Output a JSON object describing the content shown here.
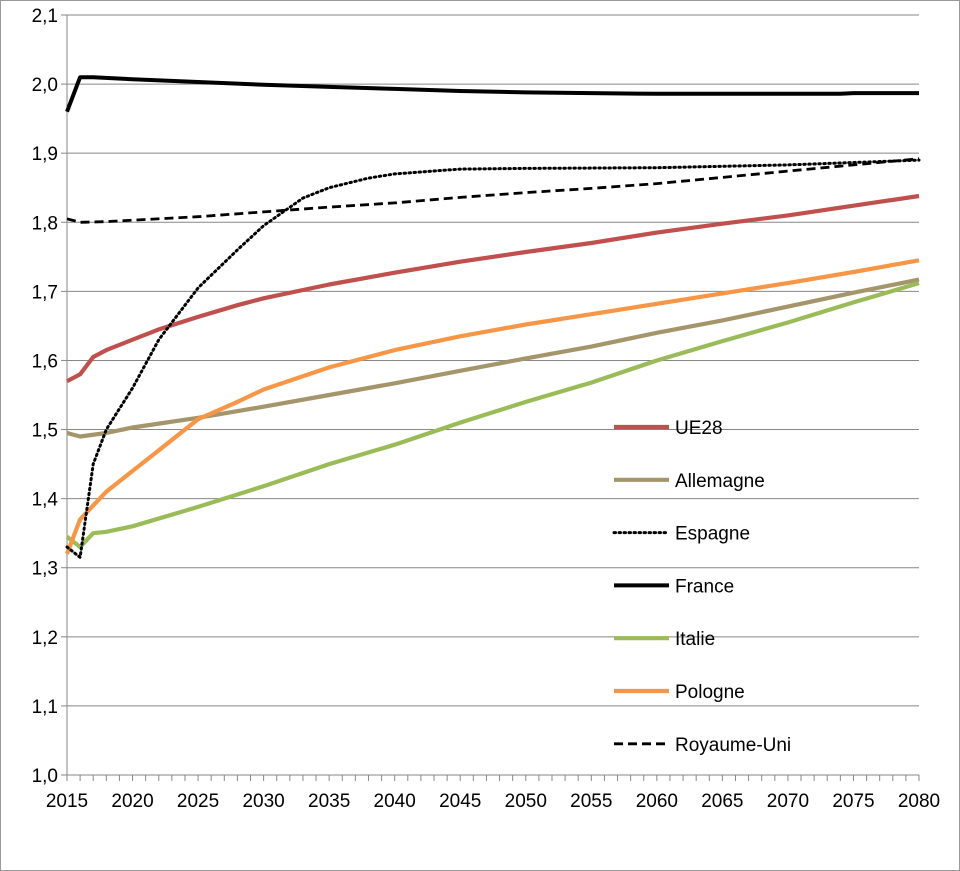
{
  "chart_data": {
    "type": "line",
    "title": "",
    "xlabel": "",
    "ylabel": "",
    "xlim": [
      2015,
      2080
    ],
    "ylim": [
      1.0,
      2.1
    ],
    "grid": "horizontal",
    "legend_position": "right-middle",
    "x_ticks": [
      "2015",
      "2020",
      "2025",
      "2030",
      "2035",
      "2040",
      "2045",
      "2050",
      "2055",
      "2060",
      "2065",
      "2070",
      "2075",
      "2080"
    ],
    "y_ticks": [
      "1,0",
      "1,1",
      "1,2",
      "1,3",
      "1,4",
      "1,5",
      "1,6",
      "1,7",
      "1,8",
      "1,9",
      "2,0",
      "2,1"
    ],
    "series": [
      {
        "name": "UE28",
        "color": "#c0504d",
        "style": "solid",
        "points": [
          [
            2015,
            1.57
          ],
          [
            2016,
            1.58
          ],
          [
            2017,
            1.605
          ],
          [
            2018,
            1.615
          ],
          [
            2020,
            1.63
          ],
          [
            2022,
            1.645
          ],
          [
            2025,
            1.663
          ],
          [
            2028,
            1.68
          ],
          [
            2030,
            1.69
          ],
          [
            2035,
            1.71
          ],
          [
            2040,
            1.727
          ],
          [
            2045,
            1.743
          ],
          [
            2050,
            1.757
          ],
          [
            2055,
            1.77
          ],
          [
            2060,
            1.785
          ],
          [
            2065,
            1.798
          ],
          [
            2070,
            1.81
          ],
          [
            2075,
            1.824
          ],
          [
            2080,
            1.838
          ]
        ]
      },
      {
        "name": "Allemagne",
        "color": "#a5956b",
        "style": "solid",
        "points": [
          [
            2015,
            1.495
          ],
          [
            2016,
            1.49
          ],
          [
            2018,
            1.495
          ],
          [
            2020,
            1.503
          ],
          [
            2025,
            1.517
          ],
          [
            2030,
            1.533
          ],
          [
            2035,
            1.55
          ],
          [
            2040,
            1.567
          ],
          [
            2045,
            1.585
          ],
          [
            2050,
            1.603
          ],
          [
            2055,
            1.62
          ],
          [
            2060,
            1.64
          ],
          [
            2065,
            1.658
          ],
          [
            2070,
            1.678
          ],
          [
            2075,
            1.698
          ],
          [
            2080,
            1.717
          ]
        ]
      },
      {
        "name": "Espagne",
        "color": "#000000",
        "style": "dotted",
        "points": [
          [
            2015,
            1.33
          ],
          [
            2016,
            1.315
          ],
          [
            2017,
            1.45
          ],
          [
            2018,
            1.5
          ],
          [
            2020,
            1.56
          ],
          [
            2022,
            1.63
          ],
          [
            2025,
            1.705
          ],
          [
            2028,
            1.76
          ],
          [
            2030,
            1.795
          ],
          [
            2033,
            1.835
          ],
          [
            2035,
            1.85
          ],
          [
            2038,
            1.864
          ],
          [
            2040,
            1.87
          ],
          [
            2045,
            1.877
          ],
          [
            2050,
            1.878
          ],
          [
            2060,
            1.879
          ],
          [
            2070,
            1.883
          ],
          [
            2080,
            1.89
          ]
        ]
      },
      {
        "name": "France",
        "color": "#000000",
        "style": "solid",
        "points": [
          [
            2015,
            1.96
          ],
          [
            2016,
            2.01
          ],
          [
            2017,
            2.01
          ],
          [
            2020,
            2.007
          ],
          [
            2025,
            2.003
          ],
          [
            2030,
            1.999
          ],
          [
            2035,
            1.996
          ],
          [
            2040,
            1.993
          ],
          [
            2045,
            1.99
          ],
          [
            2050,
            1.988
          ],
          [
            2055,
            1.987
          ],
          [
            2060,
            1.986
          ],
          [
            2065,
            1.986
          ],
          [
            2070,
            1.986
          ],
          [
            2074,
            1.986
          ],
          [
            2075,
            1.987
          ],
          [
            2080,
            1.987
          ]
        ]
      },
      {
        "name": "Italie",
        "color": "#9bbb59",
        "style": "solid",
        "points": [
          [
            2015,
            1.345
          ],
          [
            2016,
            1.33
          ],
          [
            2017,
            1.35
          ],
          [
            2018,
            1.352
          ],
          [
            2020,
            1.36
          ],
          [
            2025,
            1.388
          ],
          [
            2030,
            1.418
          ],
          [
            2035,
            1.45
          ],
          [
            2040,
            1.478
          ],
          [
            2045,
            1.51
          ],
          [
            2050,
            1.54
          ],
          [
            2055,
            1.568
          ],
          [
            2060,
            1.6
          ],
          [
            2065,
            1.628
          ],
          [
            2070,
            1.655
          ],
          [
            2075,
            1.684
          ],
          [
            2080,
            1.712
          ]
        ]
      },
      {
        "name": "Pologne",
        "color": "#f79646",
        "style": "solid",
        "points": [
          [
            2015,
            1.32
          ],
          [
            2016,
            1.37
          ],
          [
            2017,
            1.39
          ],
          [
            2018,
            1.41
          ],
          [
            2020,
            1.44
          ],
          [
            2022,
            1.47
          ],
          [
            2025,
            1.515
          ],
          [
            2028,
            1.54
          ],
          [
            2030,
            1.558
          ],
          [
            2035,
            1.59
          ],
          [
            2040,
            1.615
          ],
          [
            2045,
            1.635
          ],
          [
            2050,
            1.652
          ],
          [
            2055,
            1.667
          ],
          [
            2060,
            1.682
          ],
          [
            2065,
            1.697
          ],
          [
            2070,
            1.712
          ],
          [
            2075,
            1.728
          ],
          [
            2080,
            1.745
          ]
        ]
      },
      {
        "name": "Royaume-Uni",
        "color": "#000000",
        "style": "dashed",
        "points": [
          [
            2015,
            1.805
          ],
          [
            2016,
            1.8
          ],
          [
            2018,
            1.801
          ],
          [
            2020,
            1.803
          ],
          [
            2025,
            1.808
          ],
          [
            2030,
            1.815
          ],
          [
            2035,
            1.822
          ],
          [
            2040,
            1.828
          ],
          [
            2045,
            1.836
          ],
          [
            2050,
            1.843
          ],
          [
            2055,
            1.849
          ],
          [
            2060,
            1.856
          ],
          [
            2065,
            1.865
          ],
          [
            2070,
            1.874
          ],
          [
            2075,
            1.883
          ],
          [
            2080,
            1.892
          ]
        ]
      }
    ]
  }
}
